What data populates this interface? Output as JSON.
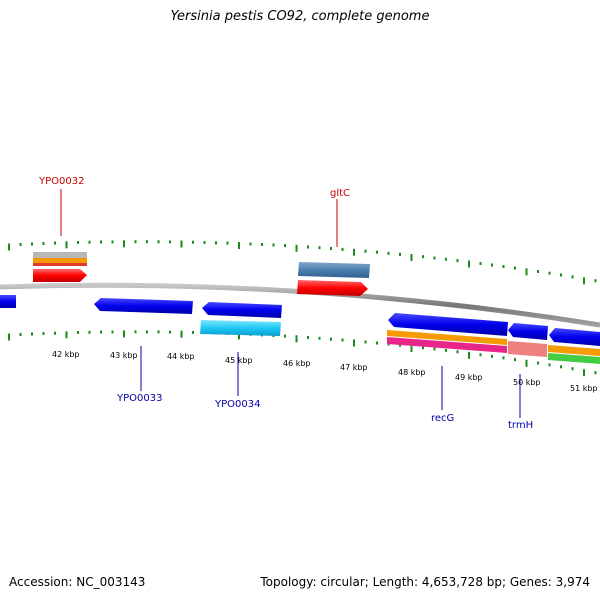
{
  "title": "Yersinia pestis CO92, complete genome",
  "footer": {
    "accession": "Accession: NC_003143",
    "summary": "Topology: circular; Length: 4,653,728 bp; Genes: 3,974"
  },
  "colors": {
    "backbone": "#808080",
    "tick": "#1a8a1a",
    "forward_gene": "#ff0000",
    "reverse_gene": "#0000ee",
    "label_forward": "#cc0000",
    "label_reverse": "#0000aa",
    "ruler_label": "#000000"
  },
  "ruler": {
    "kbp_labels": [
      "42 kbp",
      "43 kbp",
      "44 kbp",
      "45 kbp",
      "46 kbp",
      "47 kbp",
      "48 kbp",
      "49 kbp",
      "50 kbp",
      "51 kbp"
    ]
  },
  "gene_labels": {
    "YPO0032": "YPO0032",
    "gltC": "gltC",
    "YPO0033": "YPO0033",
    "YPO0034": "YPO0034",
    "recG": "recG",
    "trmH": "trmH"
  }
}
